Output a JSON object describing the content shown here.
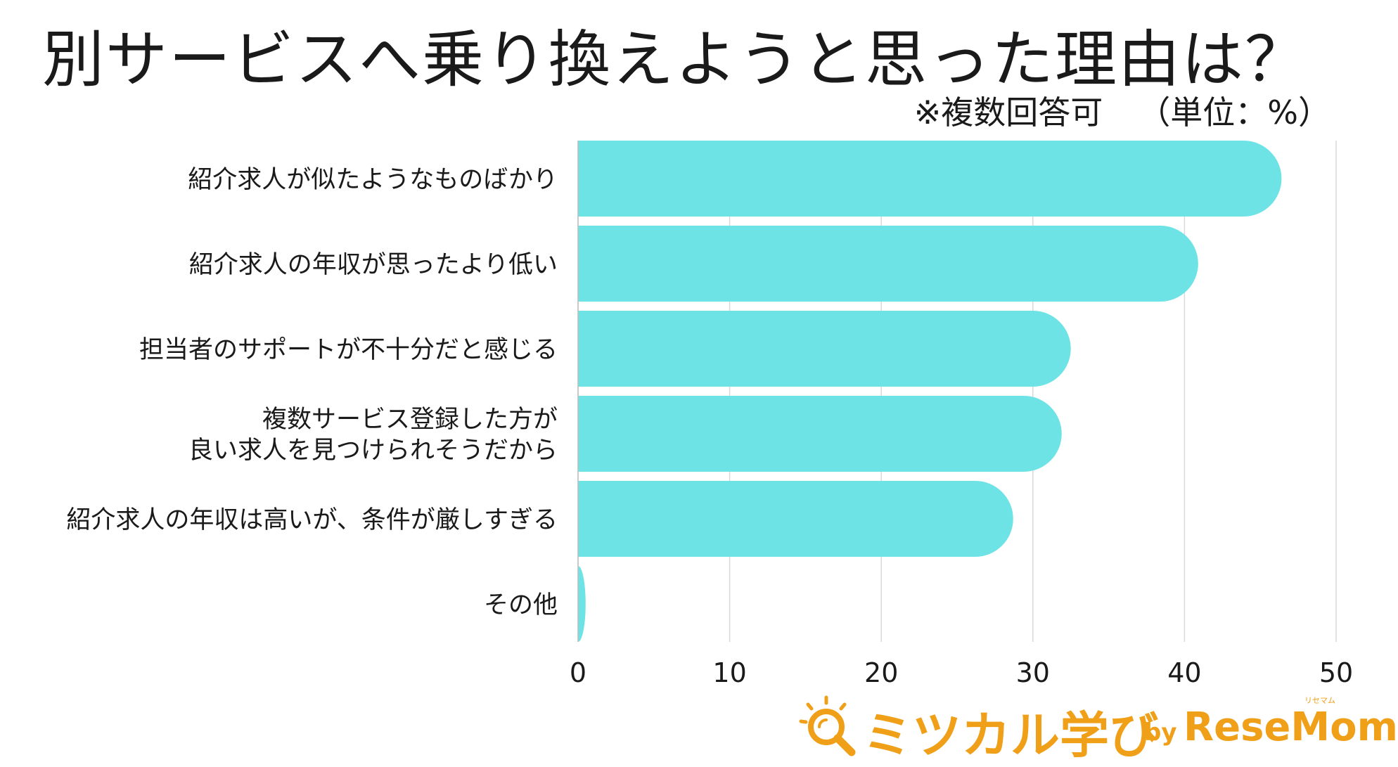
{
  "title": "別サービスへ乗り換えようと思った理由は？",
  "note": {
    "multiple": "※複数回答可",
    "unit": "（単位：%）"
  },
  "chart_data": {
    "type": "bar",
    "orientation": "horizontal",
    "categories": [
      [
        "紹介求人が似たようなものばかり"
      ],
      [
        "紹介求人の年収が思ったより低い"
      ],
      [
        "担当者のサポートが不十分だと感じる"
      ],
      [
        "複数サービス登録した方が",
        "良い求人を見つけられそうだから"
      ],
      [
        "紹介求人の年収は高いが、条件が厳しすぎる"
      ],
      [
        "その他"
      ]
    ],
    "values": [
      46.4,
      40.9,
      32.5,
      31.9,
      28.7,
      0.5
    ],
    "xlim": [
      0,
      50
    ],
    "xticks": [
      "0",
      "10",
      "20",
      "30",
      "40",
      "50"
    ],
    "grid": true,
    "bar_color": "#6ee3e6",
    "grid_color": "#d9d9d9"
  },
  "logo": {
    "name": "ミツカル学び",
    "by": "by",
    "brand": "ReseMom",
    "ruby": "リセマム",
    "icon": "magnifier-icon",
    "color": "#f0a018"
  }
}
